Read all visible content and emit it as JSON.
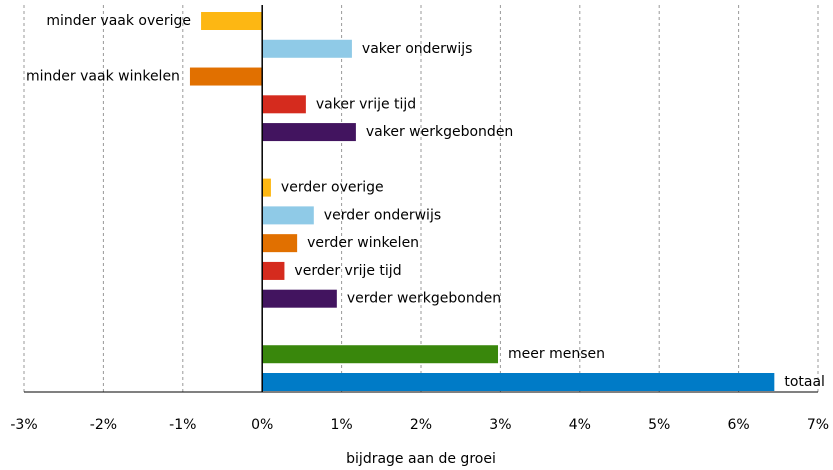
{
  "chart_data": {
    "type": "barh",
    "x_label": "bijdrage aan de groei",
    "categories": [
      "minder vaak overige",
      "vaker onderwijs",
      "minder vaak winkelen",
      "vaker vrije tijd",
      "vaker werkgebonden",
      null,
      "verder overige",
      "verder onderwijs",
      "verder winkelen",
      "verder vrije tijd",
      "verder werkgebonden",
      null,
      "meer mensen",
      "totaal"
    ],
    "values": [
      -0.77,
      1.13,
      -0.91,
      0.55,
      1.18,
      null,
      0.11,
      0.65,
      0.44,
      0.28,
      0.94,
      null,
      2.97,
      6.45
    ],
    "colors": [
      "#fdb713",
      "#8fcae7",
      "#e17000",
      "#d52b1e",
      "#42145f",
      null,
      "#fdb713",
      "#8fcae7",
      "#e17000",
      "#d52b1e",
      "#42145f",
      null,
      "#39870c",
      "#007bc7"
    ],
    "xlim": [
      -3,
      7
    ],
    "xticks": [
      {
        "value": -3,
        "label": "-3%"
      },
      {
        "value": -2,
        "label": "-2%"
      },
      {
        "value": -1,
        "label": "-1%"
      },
      {
        "value": 0,
        "label": "0%"
      },
      {
        "value": 1,
        "label": "1%"
      },
      {
        "value": 2,
        "label": "2%"
      },
      {
        "value": 3,
        "label": "3%"
      },
      {
        "value": 4,
        "label": "4%"
      },
      {
        "value": 5,
        "label": "5%"
      },
      {
        "value": 6,
        "label": "6%"
      },
      {
        "value": 7,
        "label": "7%"
      }
    ],
    "grid": true
  }
}
